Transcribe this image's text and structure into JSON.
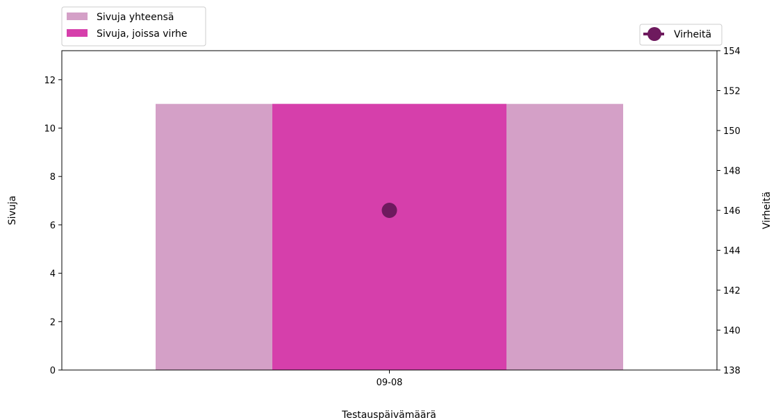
{
  "chart_data": {
    "type": "bar",
    "categories": [
      "09-08"
    ],
    "series": [
      {
        "name": "Sivuja yhteensä",
        "values": [
          11
        ],
        "color": "#d4a0c7",
        "axis": "left"
      },
      {
        "name": "Sivuja, joissa virhe",
        "values": [
          11
        ],
        "color": "#d63fab",
        "axis": "left"
      },
      {
        "name": "Virheitä",
        "values": [
          146
        ],
        "color": "#6e1a5e",
        "axis": "right",
        "type": "scatter"
      }
    ],
    "xlabel": "Testauspäivämäärä",
    "ylabel": "Sivuja",
    "ylabel_right": "Virheitä",
    "ylim": [
      0,
      13.2
    ],
    "ylim_right": [
      138,
      154
    ],
    "yticks": [
      0,
      2,
      4,
      6,
      8,
      10,
      12
    ],
    "yticks_right": [
      138,
      140,
      142,
      144,
      146,
      148,
      150,
      152,
      154
    ],
    "legend_left_placement": "above-left",
    "legend_right_placement": "above-right",
    "grid": false
  }
}
